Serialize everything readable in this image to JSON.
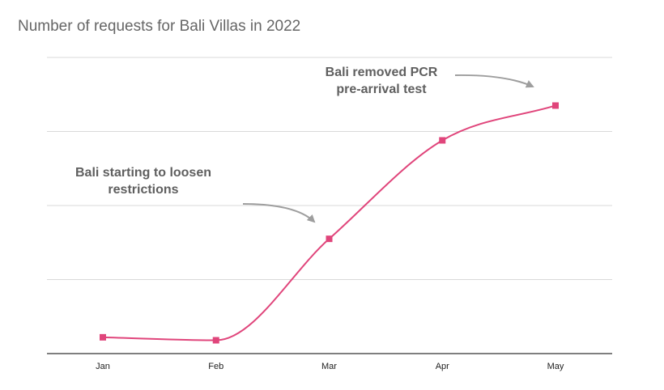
{
  "chart_data": {
    "type": "line",
    "title": "Number of requests for Bali Villas in 2022",
    "xlabel": "",
    "ylabel": "",
    "categories": [
      "Jan",
      "Feb",
      "Mar",
      "Apr",
      "May"
    ],
    "series": [
      {
        "values": [
          0.22,
          0.18,
          1.55,
          2.88,
          3.35
        ]
      }
    ],
    "ylim": [
      0,
      4
    ],
    "y_tick_labels_shown": false,
    "grid": true,
    "curve": "smooth",
    "line_color": "#e0457b",
    "marker": "square",
    "annotations": [
      {
        "lines": [
          "Bali starting to loosen",
          "restrictions"
        ],
        "points_to": "Mar"
      },
      {
        "lines": [
          "Bali removed PCR",
          "pre-arrival test"
        ],
        "points_to": "May"
      }
    ]
  },
  "colors": {
    "grid": "#d9d9d9",
    "axis": "#333333",
    "arrow": "#9e9e9e",
    "title": "#666666",
    "annotation_text": "#5f5f5f"
  }
}
